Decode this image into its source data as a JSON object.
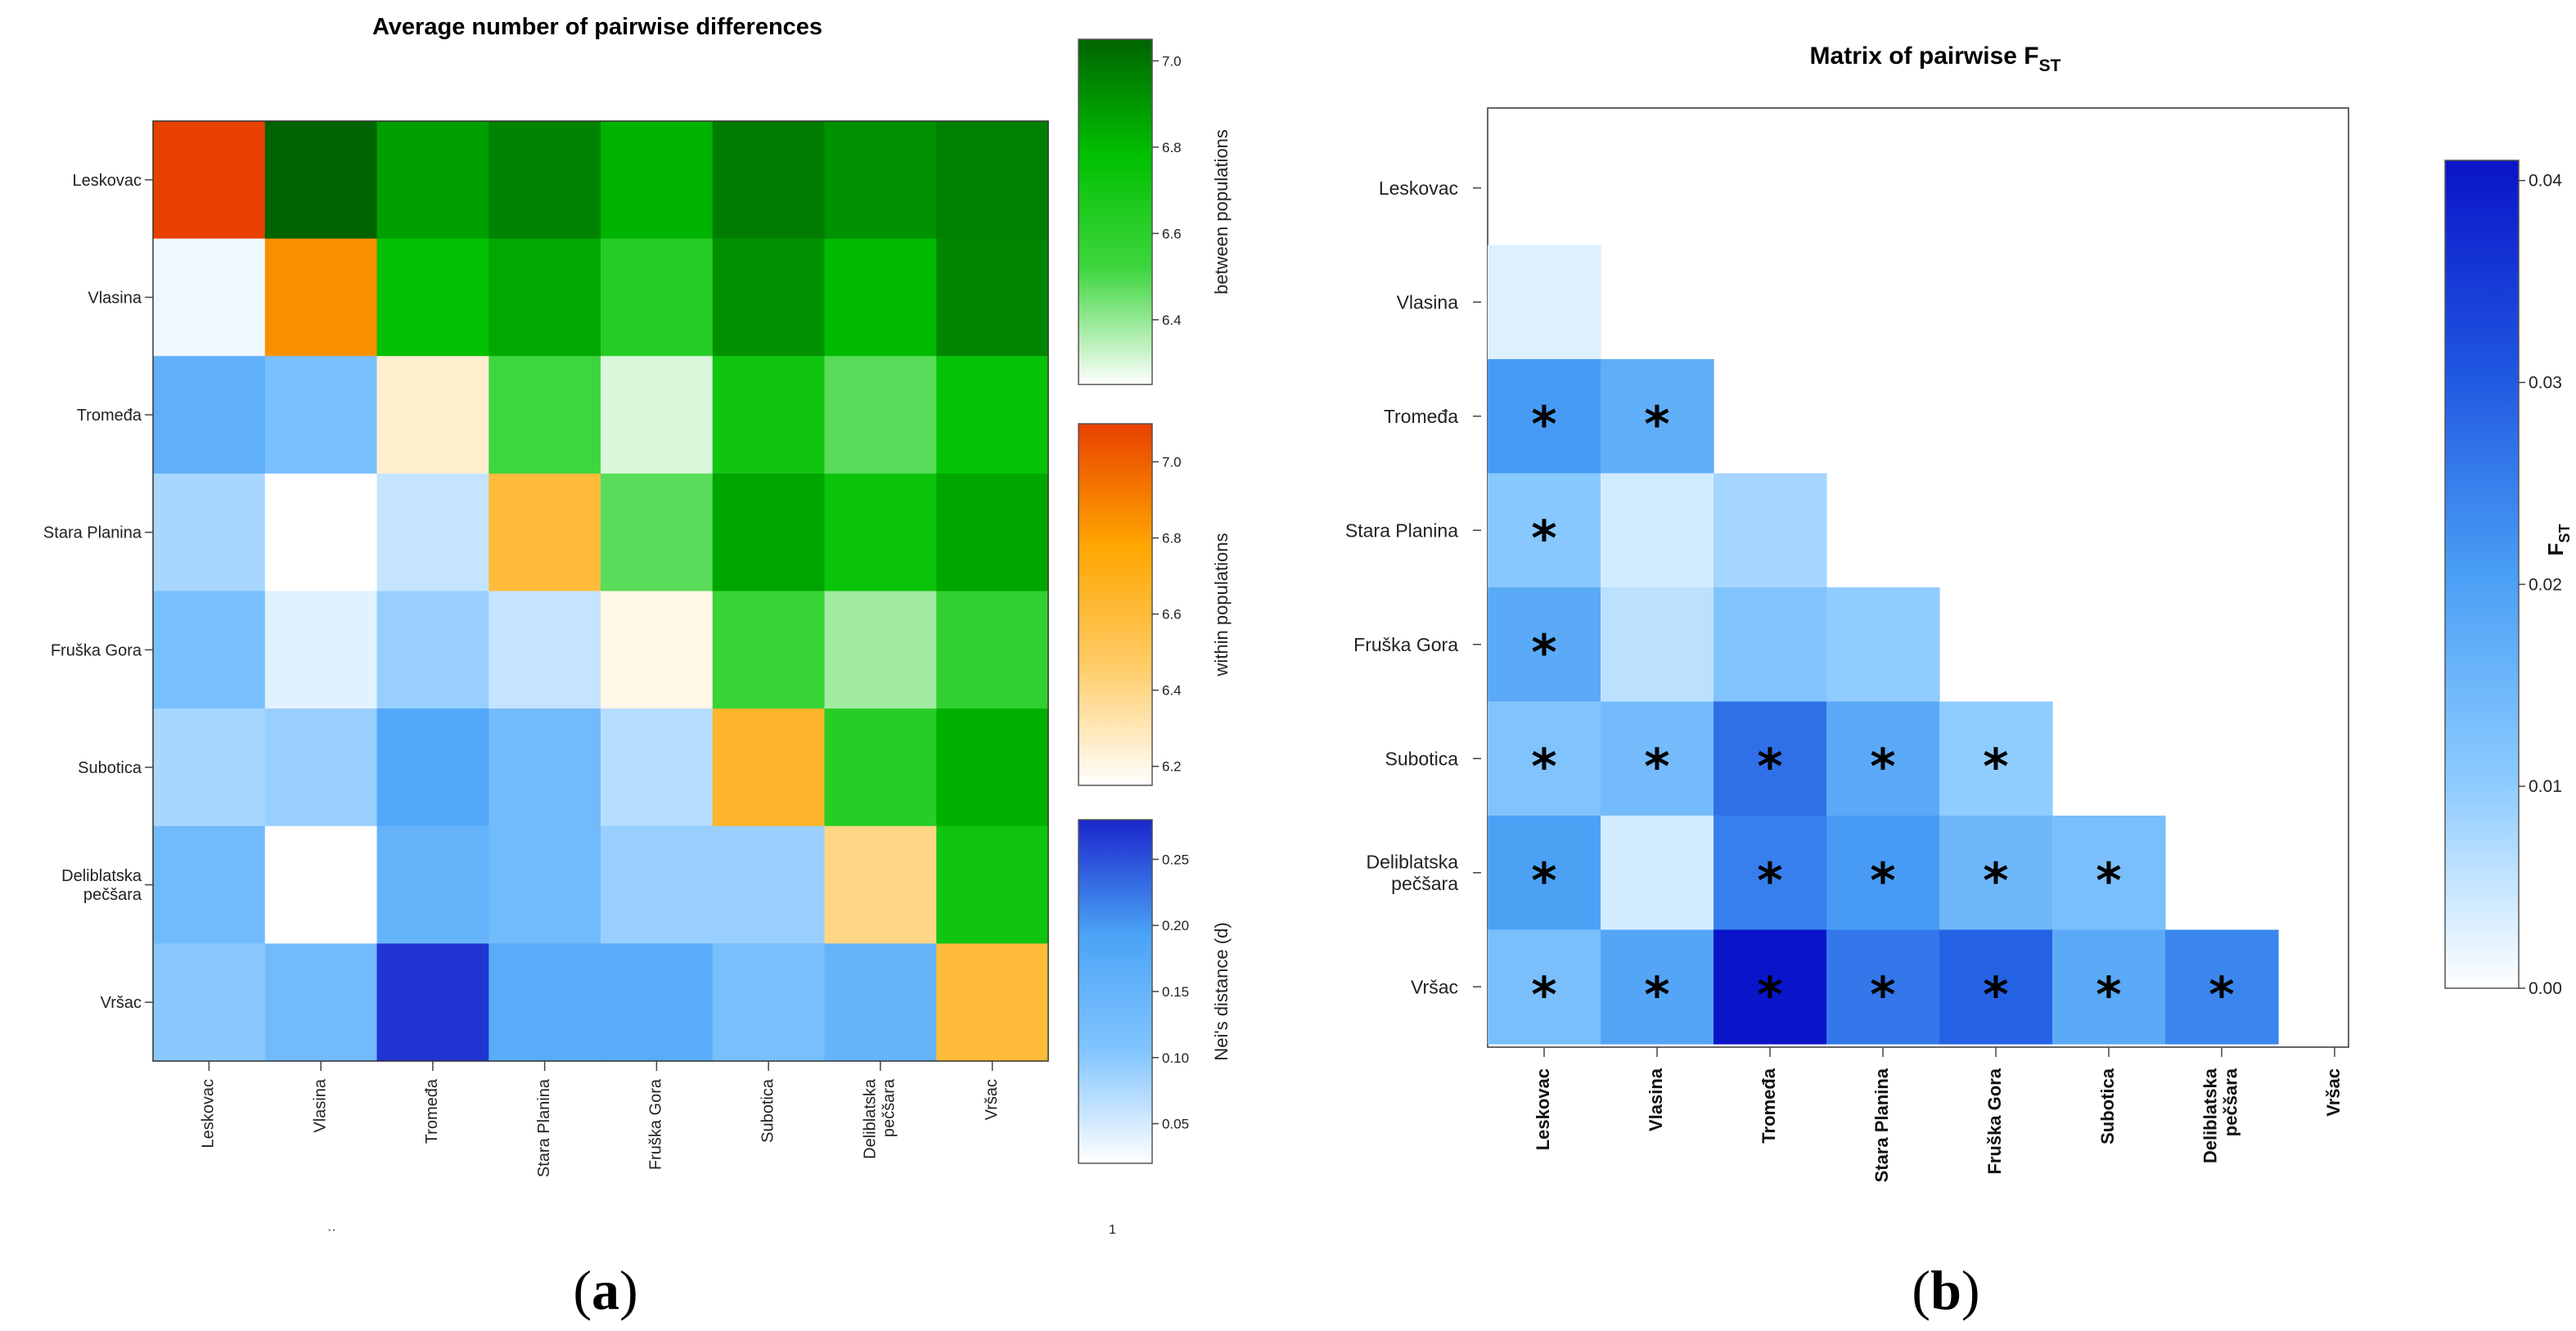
{
  "chart_data": [
    {
      "type": "heatmap",
      "panel_label": "a",
      "title": "Average number of pairwise differences",
      "row_labels": [
        "Leskovac",
        "Vlasina",
        "Tromeđa",
        "Stara Planina",
        "Fruška Gora",
        "Subotica",
        [
          "Deliblatska",
          "pečšara"
        ],
        "Vršac"
      ],
      "col_labels": [
        "Leskovac",
        "Vlasina",
        "Tromeđa",
        "Stara Planina",
        "Fruška Gora",
        "Subotica",
        [
          "Deliblatska",
          "pečšara"
        ],
        "Vršac"
      ],
      "diagonal_within_populations": [
        7.1,
        6.85,
        6.25,
        6.6,
        6.2,
        6.65,
        6.4,
        6.6
      ],
      "upper_between_populations": [
        [
          null,
          7.05,
          6.88,
          6.96,
          6.82,
          6.98,
          6.92,
          6.97
        ],
        [
          null,
          null,
          6.78,
          6.85,
          6.62,
          6.92,
          6.8,
          6.95
        ],
        [
          null,
          null,
          null,
          6.52,
          6.3,
          6.72,
          6.48,
          6.76
        ],
        [
          null,
          null,
          null,
          null,
          6.48,
          6.86,
          6.74,
          6.86
        ],
        [
          null,
          null,
          null,
          null,
          null,
          6.55,
          6.38,
          6.58
        ],
        [
          null,
          null,
          null,
          null,
          null,
          null,
          6.62,
          6.83
        ],
        [
          null,
          null,
          null,
          null,
          null,
          null,
          null,
          6.72
        ]
      ],
      "lower_neis_distance": [
        [
          null,
          null,
          null,
          null,
          null,
          null,
          null,
          null
        ],
        [
          0.03,
          null,
          null,
          null,
          null,
          null,
          null,
          null
        ],
        [
          0.16,
          0.12,
          null,
          null,
          null,
          null,
          null,
          null
        ],
        [
          0.08,
          0.02,
          0.06,
          null,
          null,
          null,
          null,
          null
        ],
        [
          0.12,
          0.04,
          0.09,
          0.06,
          null,
          null,
          null,
          null
        ],
        [
          0.08,
          0.09,
          0.18,
          0.13,
          0.07,
          null,
          null,
          null
        ],
        [
          0.13,
          0.02,
          0.15,
          0.13,
          0.09,
          0.09,
          null,
          null
        ],
        [
          0.1,
          0.13,
          0.27,
          0.17,
          0.17,
          0.12,
          0.15,
          null
        ]
      ],
      "colorbars": [
        {
          "label": "between populations",
          "range": [
            6.25,
            7.05
          ],
          "ticks": [
            "6.4",
            "6.6",
            "6.8",
            "7.0"
          ],
          "colors": [
            "#ffffff",
            "#3fd63f",
            "#00c000",
            "#006400"
          ]
        },
        {
          "label": "within populations",
          "range": [
            6.15,
            7.1
          ],
          "ticks": [
            "6.2",
            "6.4",
            "6.6",
            "6.8",
            "7.0"
          ],
          "colors": [
            "#ffffff",
            "#ffcc66",
            "#ffa500",
            "#e84000"
          ]
        },
        {
          "label": "Nei's distance (d)",
          "range": [
            0.02,
            0.28
          ],
          "ticks": [
            "0.05",
            "0.10",
            "0.15",
            "0.20",
            "0.25"
          ],
          "colors": [
            "#ffffff",
            "#80c4ff",
            "#4aa3f5",
            "#1a26cc"
          ]
        }
      ],
      "stray_marks": [
        "··",
        "1"
      ]
    },
    {
      "type": "heatmap",
      "panel_label": "b",
      "title": "Matrix of pairwise F",
      "title_subscript": "ST",
      "row_labels": [
        "Leskovac",
        "Vlasina",
        "Tromeđa",
        "Stara Planina",
        "Fruška Gora",
        "Subotica",
        [
          "Deliblatska",
          "pečšara"
        ],
        "Vršac"
      ],
      "col_labels": [
        "Leskovac",
        "Vlasina",
        "Tromeđa",
        "Stara Planina",
        "Fruška Gora",
        "Subotica",
        [
          "Deliblatska",
          "pečšara"
        ],
        "Vršac"
      ],
      "fst_lower": [
        [
          null,
          null,
          null,
          null,
          null,
          null,
          null,
          null
        ],
        [
          0.003,
          null,
          null,
          null,
          null,
          null,
          null,
          null
        ],
        [
          0.021,
          0.017,
          null,
          null,
          null,
          null,
          null,
          null
        ],
        [
          0.011,
          0.004,
          0.008,
          null,
          null,
          null,
          null,
          null
        ],
        [
          0.018,
          0.006,
          0.012,
          0.01,
          null,
          null,
          null,
          null
        ],
        [
          0.012,
          0.014,
          0.027,
          0.018,
          0.01,
          null,
          null,
          null
        ],
        [
          0.02,
          0.004,
          0.025,
          0.021,
          0.015,
          0.013,
          null,
          null
        ],
        [
          0.013,
          0.019,
          0.041,
          0.026,
          0.029,
          0.018,
          0.024,
          null
        ]
      ],
      "significance_star": "*",
      "significant": [
        [
          false,
          false,
          false,
          false,
          false,
          false,
          false,
          false
        ],
        [
          false,
          false,
          false,
          false,
          false,
          false,
          false,
          false
        ],
        [
          true,
          true,
          false,
          false,
          false,
          false,
          false,
          false
        ],
        [
          true,
          false,
          false,
          false,
          false,
          false,
          false,
          false
        ],
        [
          true,
          false,
          false,
          false,
          false,
          false,
          false,
          false
        ],
        [
          true,
          true,
          true,
          true,
          true,
          false,
          false,
          false
        ],
        [
          true,
          false,
          true,
          true,
          true,
          true,
          false,
          false
        ],
        [
          true,
          true,
          true,
          true,
          true,
          true,
          true,
          false
        ]
      ],
      "colorbar": {
        "label": "F",
        "label_subscript": "ST",
        "range": [
          0,
          0.041
        ],
        "ticks": [
          "0.00",
          "0.01",
          "0.02",
          "0.03",
          "0.04"
        ],
        "colors": [
          "#ffffff",
          "#8ccbff",
          "#4a9ff5",
          "#1f55e0",
          "#0a14c8"
        ]
      }
    }
  ]
}
